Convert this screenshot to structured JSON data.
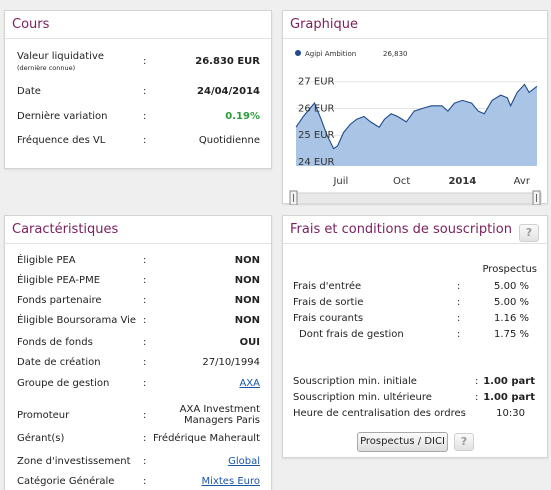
{
  "cours": {
    "title": "Cours",
    "rows": [
      {
        "label": "Valeur liquidative",
        "sublabel": "(dernière connue)",
        "sep": ":",
        "value": "26.830 EUR"
      },
      {
        "label": "Date",
        "sep": ":",
        "value": "24/04/2014"
      },
      {
        "label": "Dernière variation",
        "sep": ":",
        "value": "0.19%"
      },
      {
        "label": "Fréquence des VL",
        "sep": ":",
        "value": "Quotidienne"
      }
    ]
  },
  "graphique": {
    "title": "Graphique",
    "legend_name": "Agipi Ambition",
    "legend_value": "26,830",
    "series_color": "#1f4a8c",
    "fill_color": "#a9c4e4"
  },
  "chart_data": {
    "type": "area",
    "title": "",
    "xlabel": "",
    "ylabel": "",
    "y_tick_labels": [
      "27 EUR",
      "26 EUR",
      "25 EUR",
      "24 EUR"
    ],
    "y_ticks": [
      27,
      26,
      25,
      24
    ],
    "ylim": [
      23.85,
      27.55
    ],
    "x_tick_labels": [
      "Juil",
      "Oct",
      "2014",
      "Avr"
    ],
    "x_ticks": [
      "2013-07-01",
      "2013-10-01",
      "2014-01-01",
      "2014-04-01"
    ],
    "xlim": [
      "2013-04-24",
      "2014-04-24"
    ],
    "series": [
      {
        "name": "Agipi Ambition",
        "points": [
          [
            "2013-04-24",
            25.3
          ],
          [
            "2013-05-05",
            25.7
          ],
          [
            "2013-05-15",
            26.0
          ],
          [
            "2013-05-22",
            26.2
          ],
          [
            "2013-06-01",
            25.6
          ],
          [
            "2013-06-10",
            25.0
          ],
          [
            "2013-06-20",
            24.5
          ],
          [
            "2013-06-26",
            24.6
          ],
          [
            "2013-07-05",
            25.1
          ],
          [
            "2013-07-15",
            25.4
          ],
          [
            "2013-07-25",
            25.6
          ],
          [
            "2013-08-05",
            25.7
          ],
          [
            "2013-08-15",
            25.5
          ],
          [
            "2013-08-28",
            25.3
          ],
          [
            "2013-09-05",
            25.6
          ],
          [
            "2013-09-15",
            25.8
          ],
          [
            "2013-09-25",
            25.7
          ],
          [
            "2013-10-08",
            25.5
          ],
          [
            "2013-10-20",
            25.9
          ],
          [
            "2013-11-01",
            26.0
          ],
          [
            "2013-11-15",
            26.1
          ],
          [
            "2013-12-01",
            26.1
          ],
          [
            "2013-12-10",
            25.9
          ],
          [
            "2013-12-20",
            26.2
          ],
          [
            "2014-01-01",
            26.3
          ],
          [
            "2014-01-15",
            26.2
          ],
          [
            "2014-01-25",
            25.9
          ],
          [
            "2014-02-03",
            25.8
          ],
          [
            "2014-02-15",
            26.3
          ],
          [
            "2014-02-28",
            26.5
          ],
          [
            "2014-03-10",
            26.4
          ],
          [
            "2014-03-15",
            26.1
          ],
          [
            "2014-03-25",
            26.6
          ],
          [
            "2014-04-05",
            26.9
          ],
          [
            "2014-04-12",
            26.6
          ],
          [
            "2014-04-24",
            26.83
          ]
        ]
      }
    ]
  },
  "caracteristiques": {
    "title": "Caractéristiques",
    "rows": [
      {
        "label": "Éligible PEA",
        "sep": ":",
        "value": "NON",
        "style": "bold"
      },
      {
        "label": "Éligible PEA-PME",
        "sep": ":",
        "value": "NON",
        "style": "bold"
      },
      {
        "label": "Fonds partenaire",
        "sep": ":",
        "value": "NON",
        "style": "bold"
      },
      {
        "label": "Éligible Boursorama Vie",
        "sep": ":",
        "value": "NON",
        "style": "bold"
      },
      {
        "label": "Fonds de fonds",
        "sep": ":",
        "value": "OUI",
        "style": "bold"
      },
      {
        "label": "Date de création",
        "sep": ":",
        "value": "27/10/1994",
        "style": "plain"
      },
      {
        "label": "Groupe de gestion",
        "sep": ":",
        "value": "AXA",
        "style": "link"
      },
      {
        "label": "Promoteur",
        "sep": ":",
        "value": "AXA Investment",
        "value2": "Managers Paris",
        "style": "plain"
      },
      {
        "label": "Gérant(s)",
        "sep": ":",
        "value": "Frédérique Maherault",
        "style": "plain"
      },
      {
        "label": "Zone d'investissement",
        "sep": ":",
        "value": "Global",
        "style": "link"
      },
      {
        "label": "Catégorie Générale",
        "sep": ":",
        "value": "Mixtes Euro",
        "style": "link"
      }
    ]
  },
  "frais": {
    "title": "Frais et conditions de souscription",
    "help": "?",
    "prospectus_header": "Prospectus",
    "fees": [
      {
        "label": "Frais d'entrée",
        "sep": ":",
        "value": "5.00 %"
      },
      {
        "label": "Frais de sortie",
        "sep": ":",
        "value": "5.00 %"
      },
      {
        "label": "Frais courants",
        "sep": ":",
        "value": "1.16 %"
      },
      {
        "label": "Dont frais de gestion",
        "sep": ":",
        "value": "1.75 %"
      }
    ],
    "subscriptions": [
      {
        "label": "Souscription min. initiale",
        "sep": ":",
        "value": "1.00 part"
      },
      {
        "label": "Souscription min. ultérieure",
        "sep": ":",
        "value": "1.00 part"
      },
      {
        "label": "Heure de centralisation des ordres",
        "sep": "",
        "value": "10:30"
      }
    ],
    "prospectus_button": "Prospectus / DICI",
    "button_help": "?"
  }
}
